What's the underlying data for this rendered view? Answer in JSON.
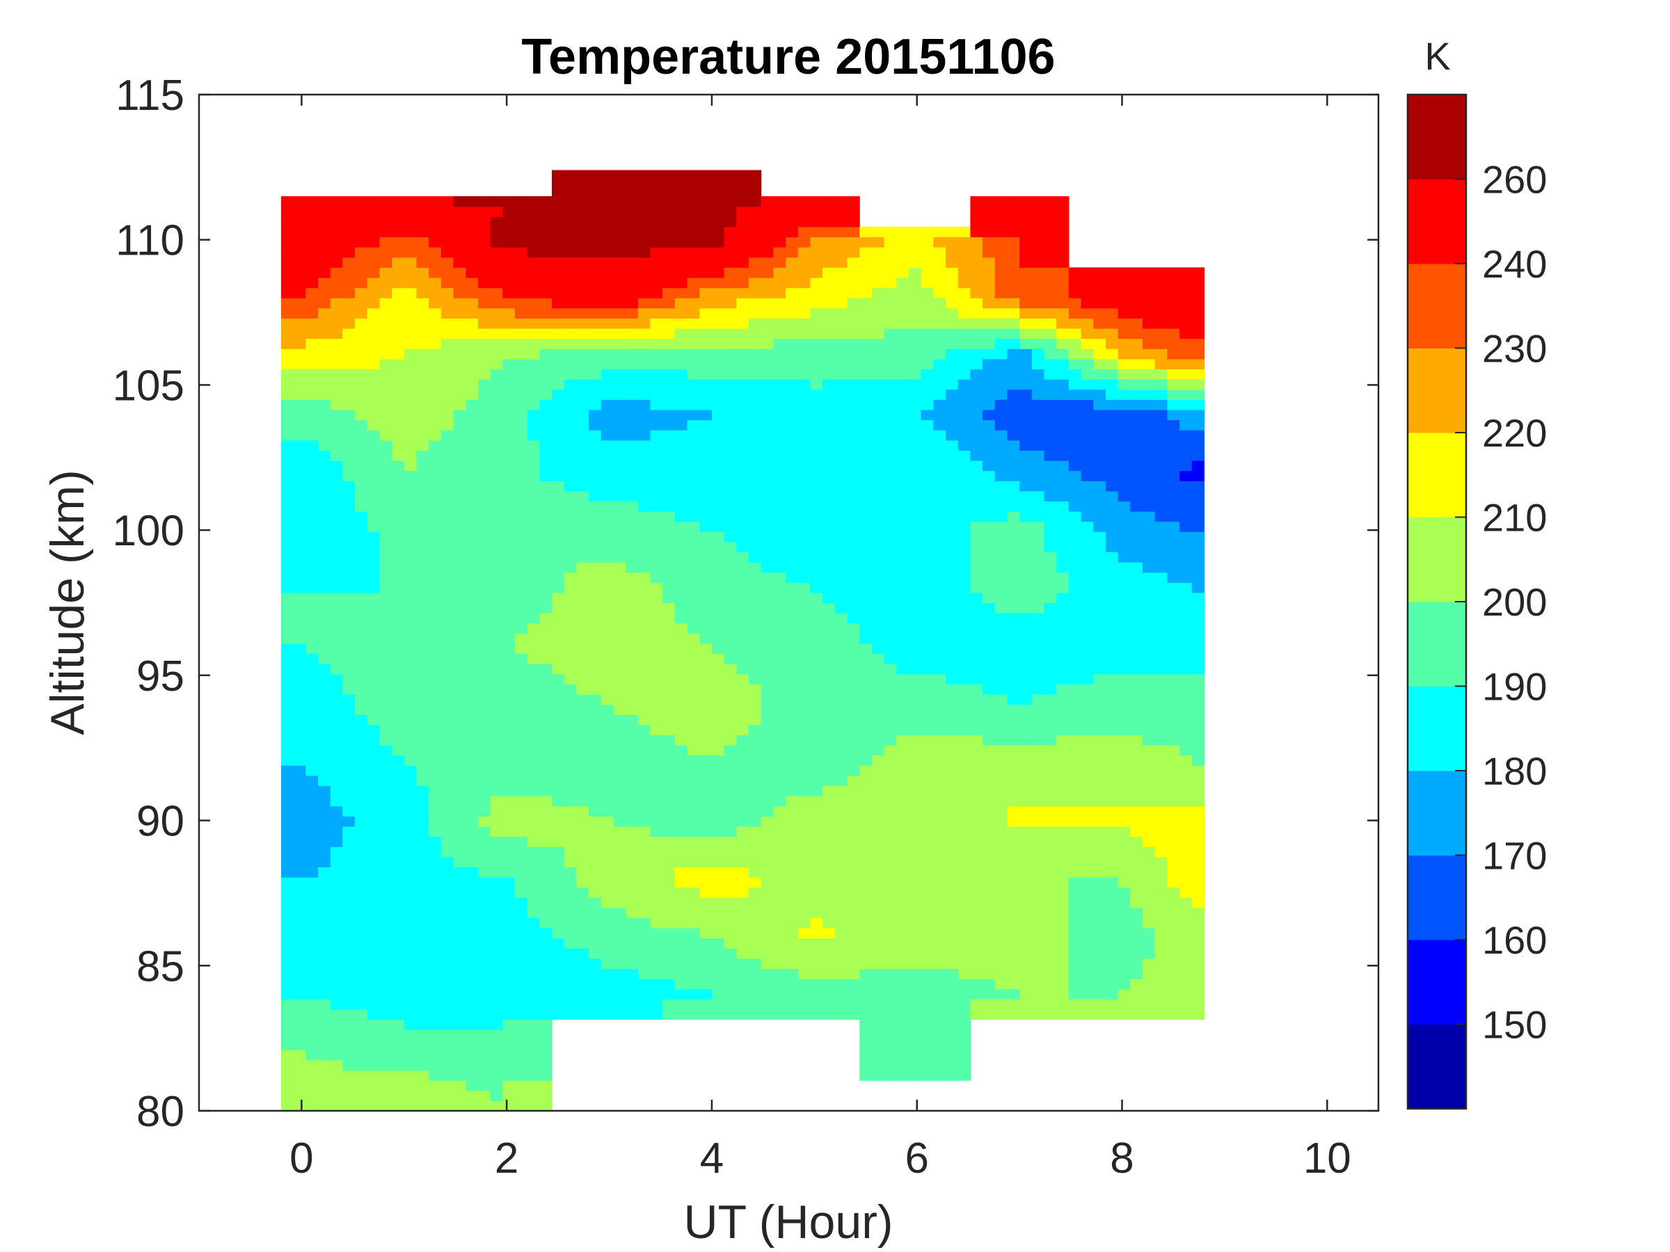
{
  "chart_data": {
    "type": "heatmap",
    "subtype": "filled-contour",
    "title": "Temperature 20151106",
    "xlabel": "UT (Hour)",
    "ylabel": "Altitude (km)",
    "colorbar_label": "K",
    "xlim": [
      -1,
      10.5
    ],
    "ylim": [
      80,
      115
    ],
    "xticks": [
      0,
      2,
      4,
      6,
      8,
      10
    ],
    "yticks": [
      80,
      85,
      90,
      95,
      100,
      105,
      110,
      115
    ],
    "grid": false,
    "colorbar_ticks": [
      150,
      160,
      170,
      180,
      190,
      200,
      210,
      220,
      230,
      240,
      260
    ],
    "levels": [
      150,
      160,
      170,
      180,
      190,
      200,
      210,
      220,
      230,
      240,
      260
    ],
    "colors": [
      "#0000aa",
      "#0000ff",
      "#0055ff",
      "#00aaff",
      "#00ffff",
      "#55ffaa",
      "#aaff55",
      "#ffff00",
      "#ffaa00",
      "#ff5500",
      "#ff0000",
      "#aa0000"
    ],
    "x": [
      0,
      1,
      2,
      3,
      4,
      5,
      6,
      7,
      8,
      8.7
    ],
    "y": [
      80,
      82,
      84,
      86,
      88,
      90,
      92,
      94,
      96,
      98,
      100,
      102,
      104,
      106,
      108,
      110,
      111,
      112
    ],
    "values": [
      [
        205,
        210,
        200,
        null,
        null,
        null,
        null,
        null,
        null,
        null
      ],
      [
        200,
        195,
        195,
        null,
        null,
        null,
        195,
        null,
        null,
        null
      ],
      [
        190,
        185,
        180,
        185,
        190,
        195,
        195,
        200,
        200,
        205
      ],
      [
        185,
        185,
        185,
        195,
        200,
        212,
        205,
        205,
        195,
        205
      ],
      [
        180,
        185,
        190,
        205,
        215,
        205,
        200,
        200,
        200,
        215
      ],
      [
        175,
        185,
        205,
        200,
        195,
        205,
        200,
        212,
        212,
        215
      ],
      [
        180,
        190,
        195,
        195,
        200,
        195,
        205,
        205,
        205,
        200
      ],
      [
        185,
        195,
        195,
        200,
        205,
        195,
        195,
        190,
        195,
        195
      ],
      [
        190,
        195,
        200,
        205,
        200,
        195,
        185,
        185,
        185,
        185
      ],
      [
        190,
        190,
        195,
        205,
        195,
        190,
        185,
        195,
        185,
        180
      ],
      [
        185,
        192,
        200,
        195,
        190,
        182,
        185,
        195,
        175,
        170
      ],
      [
        182,
        200,
        192,
        185,
        185,
        185,
        190,
        175,
        165,
        158
      ],
      [
        195,
        205,
        195,
        175,
        180,
        185,
        180,
        165,
        162,
        175
      ],
      [
        215,
        210,
        200,
        195,
        195,
        195,
        195,
        175,
        220,
        235
      ],
      [
        240,
        215,
        240,
        250,
        225,
        215,
        205,
        235,
        250,
        255
      ],
      [
        255,
        235,
        265,
        265,
        265,
        230,
        215,
        240,
        null,
        null
      ],
      [
        250,
        255,
        260,
        265,
        265,
        245,
        null,
        250,
        null,
        null
      ],
      [
        null,
        null,
        null,
        260,
        260,
        null,
        null,
        null,
        null,
        null
      ]
    ]
  }
}
